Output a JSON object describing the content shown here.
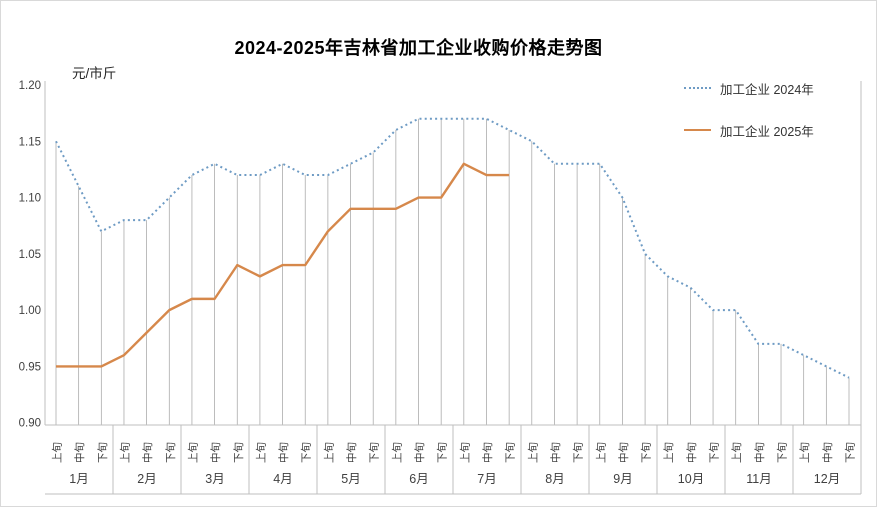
{
  "title": "2024-2025年吉林省加工企业收购价格走势图",
  "unit_label": "元/市斤",
  "legend": [
    {
      "label": "加工企业 2024年",
      "style": "dotted",
      "color": "#6E9BC4"
    },
    {
      "label": "加工企业 2025年",
      "style": "solid",
      "color": "#D6884B"
    }
  ],
  "colors": {
    "series_2024": "#6E9BC4",
    "series_2025": "#D6884B",
    "axis_line": "#BFBFBF",
    "drop_line": "#A6A6A6",
    "tick_text": "#404040",
    "border": "#D9D9D9"
  },
  "chart_data": {
    "type": "line",
    "title": "2024-2025年吉林省加工企业收购价格走势图",
    "ylabel": "元/市斤",
    "ylim": [
      0.9,
      1.2
    ],
    "ytick_labels": [
      "0.90",
      "0.95",
      "1.00",
      "1.05",
      "1.10",
      "1.15",
      "1.20"
    ],
    "grid": "drop-lines-vertical",
    "legend_position": "top-right",
    "months": [
      "1月",
      "2月",
      "3月",
      "4月",
      "5月",
      "6月",
      "7月",
      "8月",
      "9月",
      "10月",
      "11月",
      "12月"
    ],
    "periods": [
      "上旬",
      "中旬",
      "下旬"
    ],
    "series": [
      {
        "name": "加工企业 2024年",
        "line_style": "dotted",
        "color": "#6E9BC4",
        "values": [
          1.15,
          1.11,
          1.07,
          1.08,
          1.08,
          1.1,
          1.12,
          1.13,
          1.12,
          1.12,
          1.13,
          1.12,
          1.12,
          1.13,
          1.14,
          1.16,
          1.17,
          1.17,
          1.17,
          1.17,
          1.16,
          1.15,
          1.13,
          1.13,
          1.13,
          1.1,
          1.05,
          1.03,
          1.02,
          1.0,
          1.0,
          0.97,
          0.97,
          0.96,
          0.95,
          0.94
        ]
      },
      {
        "name": "加工企业 2025年",
        "line_style": "solid",
        "color": "#D6884B",
        "values": [
          0.95,
          0.95,
          0.95,
          0.96,
          0.98,
          1.0,
          1.01,
          1.01,
          1.04,
          1.03,
          1.04,
          1.04,
          1.07,
          1.09,
          1.09,
          1.09,
          1.1,
          1.1,
          1.13,
          1.12,
          1.12
        ]
      }
    ]
  }
}
